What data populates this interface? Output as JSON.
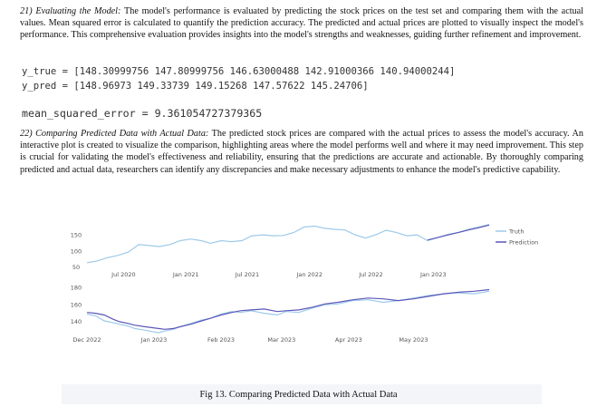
{
  "section21": {
    "number": "21)",
    "title": "Evaluating the Model:",
    "body": "The model's performance is evaluated by predicting the stock prices on the test set and comparing them with the actual values. Mean squared error is calculated to quantify the prediction accuracy. The predicted and actual prices are plotted to visually inspect the model's performance. This comprehensive evaluation provides insights into the model's strengths and weaknesses, guiding further refinement and improvement."
  },
  "code": {
    "y_true": "y_true = [148.30999756 147.80999756 146.63000488 142.91000366 140.94000244]",
    "y_pred": "y_pred = [148.96973 149.33739 149.15268 147.57622 145.24706]",
    "mse": "mean_squared_error = 9.361054727379365"
  },
  "section22": {
    "number": "22)",
    "title": "Comparing Predicted Data with Actual Data:",
    "body": "The predicted stock prices are compared with the actual prices to assess the model's accuracy. An interactive plot is created to visualize the comparison, highlighting areas where the model performs well and where it may need improvement. This step is crucial for validating the model's effectiveness and reliability, ensuring that the predictions are accurate and actionable. By thoroughly comparing predicted and actual data, researchers can identify any discrepancies and make necessary adjustments to enhance the model's predictive capability."
  },
  "colors": {
    "truth": "#9ecae9",
    "prediction": "#5b57b8",
    "tick": "#555555"
  },
  "chart_data": [
    {
      "type": "line",
      "title": "",
      "x_ticks": [
        "Jul 2020",
        "Jan 2021",
        "Jul 2021",
        "Jan 2022",
        "Jul 2022",
        "Jan 2023"
      ],
      "y_ticks": [
        150,
        100,
        50
      ],
      "ylim": [
        45,
        190
      ],
      "legend": [
        "Truth",
        "Prediction"
      ],
      "legend_position": "right",
      "grid": false,
      "series": [
        {
          "name": "Truth",
          "x": [
            "2020-03",
            "2020-04",
            "2020-05",
            "2020-06",
            "2020-07",
            "2020-08",
            "2020-09",
            "2020-10",
            "2020-11",
            "2020-12",
            "2021-01",
            "2021-02",
            "2021-03",
            "2021-04",
            "2021-05",
            "2021-06",
            "2021-07",
            "2021-08",
            "2021-09",
            "2021-10",
            "2021-11",
            "2021-12",
            "2022-01",
            "2022-02",
            "2022-03",
            "2022-04",
            "2022-05",
            "2022-06",
            "2022-07",
            "2022-08",
            "2022-09",
            "2022-10",
            "2022-11",
            "2022-12",
            "2023-01",
            "2023-02",
            "2023-03",
            "2023-04",
            "2023-05",
            "2023-06"
          ],
          "values": [
            62,
            68,
            78,
            85,
            95,
            118,
            115,
            112,
            118,
            130,
            135,
            130,
            122,
            130,
            127,
            130,
            145,
            148,
            145,
            146,
            155,
            172,
            175,
            168,
            165,
            163,
            148,
            138,
            148,
            162,
            155,
            145,
            148,
            130,
            140,
            150,
            155,
            165,
            172,
            180
          ]
        },
        {
          "name": "Prediction",
          "x": [
            "2022-12",
            "2023-01",
            "2023-02",
            "2023-03",
            "2023-04",
            "2023-05",
            "2023-06"
          ],
          "values": [
            132,
            140,
            148,
            155,
            163,
            170,
            178
          ]
        }
      ]
    },
    {
      "type": "line",
      "title": "",
      "x_ticks": [
        "Dec 2022",
        "Jan 2023",
        "Feb 2023",
        "Mar 2023",
        "Apr 2023",
        "May 2023"
      ],
      "y_ticks": [
        180,
        160,
        140
      ],
      "ylim": [
        125,
        185
      ],
      "legend": [],
      "grid": false,
      "series": [
        {
          "name": "Truth",
          "x": [
            "2022-12-01",
            "2022-12-05",
            "2022-12-09",
            "2022-12-13",
            "2022-12-16",
            "2022-12-20",
            "2022-12-23",
            "2022-12-28",
            "2023-01-03",
            "2023-01-06",
            "2023-01-10",
            "2023-01-13",
            "2023-01-18",
            "2023-01-23",
            "2023-01-27",
            "2023-02-01",
            "2023-02-06",
            "2023-02-10",
            "2023-02-15",
            "2023-02-21",
            "2023-02-27",
            "2023-03-03",
            "2023-03-09",
            "2023-03-15",
            "2023-03-21",
            "2023-03-27",
            "2023-04-03",
            "2023-04-10",
            "2023-04-17",
            "2023-04-24",
            "2023-05-01",
            "2023-05-08",
            "2023-05-15",
            "2023-05-22",
            "2023-05-29",
            "2023-06-05"
          ],
          "values": [
            148,
            146,
            140,
            138,
            136,
            134,
            131,
            129,
            126,
            128,
            130,
            133,
            137,
            141,
            143,
            148,
            151,
            150,
            152,
            149,
            147,
            151,
            150,
            155,
            159,
            160,
            164,
            165,
            162,
            164,
            167,
            170,
            172,
            173,
            172,
            175
          ]
        },
        {
          "name": "Prediction",
          "x": [
            "2022-12-01",
            "2022-12-05",
            "2022-12-09",
            "2022-12-13",
            "2022-12-16",
            "2022-12-20",
            "2022-12-23",
            "2022-12-28",
            "2023-01-03",
            "2023-01-06",
            "2023-01-10",
            "2023-01-13",
            "2023-01-18",
            "2023-01-23",
            "2023-01-27",
            "2023-02-01",
            "2023-02-06",
            "2023-02-10",
            "2023-02-15",
            "2023-02-21",
            "2023-02-27",
            "2023-03-03",
            "2023-03-09",
            "2023-03-15",
            "2023-03-21",
            "2023-03-27",
            "2023-04-03",
            "2023-04-10",
            "2023-04-17",
            "2023-04-24",
            "2023-05-01",
            "2023-05-08",
            "2023-05-15",
            "2023-05-22",
            "2023-05-29",
            "2023-06-05"
          ],
          "values": [
            150,
            149,
            147,
            142,
            139,
            137,
            135,
            133,
            131,
            130,
            131,
            133,
            136,
            140,
            143,
            147,
            150,
            152,
            153,
            154,
            151,
            152,
            153,
            156,
            160,
            162,
            165,
            167,
            166,
            164,
            166,
            169,
            172,
            174,
            175,
            177
          ]
        }
      ]
    }
  ],
  "caption": "Fig 13. Comparing Predicted Data with Actual Data"
}
